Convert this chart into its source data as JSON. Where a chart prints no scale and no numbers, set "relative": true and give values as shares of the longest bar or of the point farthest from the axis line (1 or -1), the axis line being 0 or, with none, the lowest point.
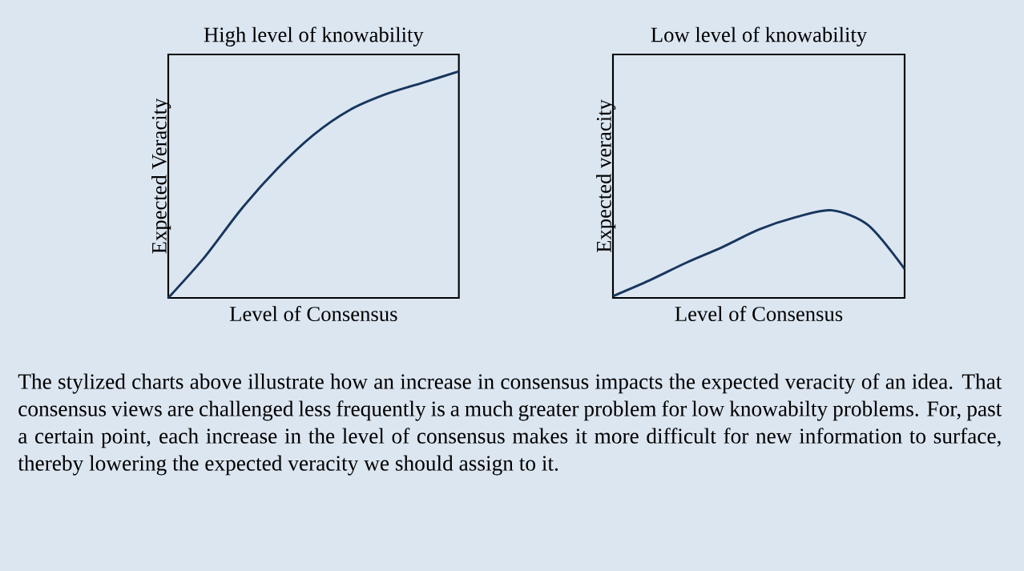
{
  "chart_data": [
    {
      "type": "line",
      "title": "High level of knowability",
      "xlabel": "Level of Consensus",
      "ylabel": "Expected Veracity",
      "relative": true,
      "categories": [
        null,
        null,
        null,
        null,
        null,
        null,
        null,
        null,
        null
      ],
      "color": "#17365d",
      "values": [
        0,
        0.18,
        0.39,
        0.57,
        0.72,
        0.83,
        0.9,
        0.95,
        1
      ]
    },
    {
      "type": "line",
      "title": "Low level of knowability",
      "xlabel": "Level of Consensus",
      "ylabel": "Expected veracity",
      "relative": true,
      "categories": [
        null,
        null,
        null,
        null,
        null,
        null,
        null,
        null,
        null
      ],
      "color": "#17365d",
      "values": [
        0.02,
        0.2,
        0.4,
        0.58,
        0.78,
        0.92,
        1,
        0.83,
        0.33
      ]
    },
    {
      "type": "other",
      "annotations": [
        "The stylized charts above illustrate how an increase in consensus impacts the expected veracity of an idea. That consensus views are challenged less frequently is a much greater problem for low knowabilty problems. For, past a certain point, each increase in the level of consensus makes it more difficult for new information to surface, thereby lowering the expected veracity we should assign to it."
      ]
    }
  ]
}
